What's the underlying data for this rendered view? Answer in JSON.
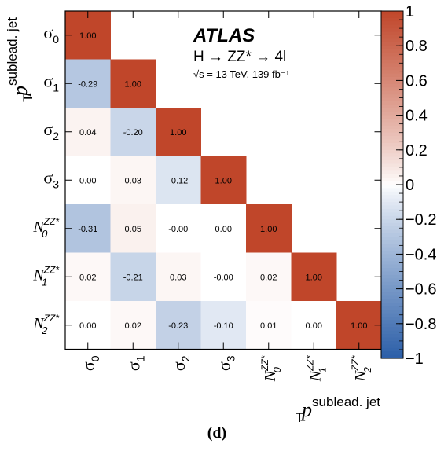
{
  "chart_data": {
    "type": "heatmap",
    "caption": "(d)",
    "experiment": "ATLAS",
    "process": "H → ZZ* → 4l",
    "energy_lumi": "√s = 13 TeV, 139 fb⁻¹",
    "axis_variable": {
      "symbol": "p",
      "subscript": "T",
      "superscript": "sublead. jet"
    },
    "parameters": [
      {
        "base": "σ",
        "sub": "0",
        "sup": ""
      },
      {
        "base": "σ",
        "sub": "1",
        "sup": ""
      },
      {
        "base": "σ",
        "sub": "2",
        "sup": ""
      },
      {
        "base": "σ",
        "sub": "3",
        "sup": ""
      },
      {
        "base": "N",
        "sub": "0",
        "sup": "ZZ*"
      },
      {
        "base": "N",
        "sub": "1",
        "sup": "ZZ*"
      },
      {
        "base": "N",
        "sub": "2",
        "sup": "ZZ*"
      }
    ],
    "matrix": [
      [
        1.0,
        null,
        null,
        null,
        null,
        null,
        null
      ],
      [
        -0.29,
        1.0,
        null,
        null,
        null,
        null,
        null
      ],
      [
        0.04,
        -0.2,
        1.0,
        null,
        null,
        null,
        null
      ],
      [
        0.0,
        0.03,
        -0.12,
        1.0,
        null,
        null,
        null
      ],
      [
        -0.31,
        0.05,
        -0.0,
        0.0,
        1.0,
        null,
        null
      ],
      [
        0.02,
        -0.21,
        0.03,
        -0.0,
        0.02,
        1.0,
        null
      ],
      [
        0.0,
        0.02,
        -0.23,
        -0.1,
        0.01,
        0.0,
        1.0
      ]
    ],
    "cell_labels": [
      [
        "1.00"
      ],
      [
        "-0.29",
        "1.00"
      ],
      [
        "0.04",
        "-0.20",
        "1.00"
      ],
      [
        "0.00",
        "0.03",
        "-0.12",
        "1.00"
      ],
      [
        "-0.31",
        "0.05",
        "-0.00",
        "0.00",
        "1.00"
      ],
      [
        "0.02",
        "-0.21",
        "0.03",
        "-0.00",
        "0.02",
        "1.00"
      ],
      [
        "0.00",
        "0.02",
        "-0.23",
        "-0.10",
        "0.01",
        "0.00",
        "1.00"
      ]
    ],
    "colorbar": {
      "range": [
        -1,
        1
      ],
      "ticks": [
        1,
        0.8,
        0.6,
        0.4,
        0.2,
        0,
        -0.2,
        -0.4,
        -0.6,
        -0.8,
        -1
      ],
      "tick_labels": [
        "1",
        "0.8",
        "0.6",
        "0.4",
        "0.2",
        "0",
        "−0.2",
        "−0.4",
        "−0.6",
        "−0.8",
        "−1"
      ],
      "color_max": "#c0462a",
      "color_mid": "#ffffff",
      "color_min": "#2c5fa8"
    }
  }
}
